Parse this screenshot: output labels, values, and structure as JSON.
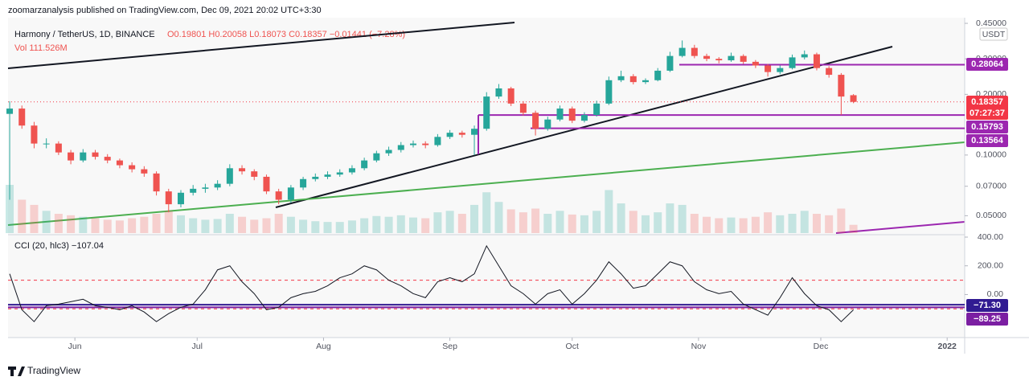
{
  "header": {
    "publisher": "zoomarzanalysis published on TradingView.com, Dec 09, 2021 20:02 UTC+3:30",
    "brand": "TradingView"
  },
  "chart_data": [
    {
      "type": "candlestick",
      "title": "Harmony / TetherUS, 1D, BINANCE",
      "subtitle": "O0.19801 H0.20058 L0.18073 C0.18357 −0.01441 (−7.28%)",
      "volume_label": "Vol 111.526M",
      "currency": "USDT",
      "countdown": "07:27:37",
      "log": true,
      "up_color": "#26a69a",
      "down_color": "#ef5350",
      "level_color": "#9c27b0",
      "x": [
        0,
        3,
        6,
        9,
        12,
        15,
        18,
        21,
        24,
        27,
        30,
        33,
        36,
        39,
        42,
        45,
        48,
        51,
        54,
        57,
        60,
        63,
        66,
        69,
        72,
        75,
        78,
        81,
        84,
        87,
        90,
        93,
        96,
        99,
        102,
        105,
        108,
        111,
        114,
        117,
        120,
        123,
        126,
        129,
        132,
        135,
        138,
        141,
        144,
        147,
        150,
        153,
        156,
        159,
        162,
        165,
        168,
        171,
        174,
        177,
        180,
        183,
        186,
        189,
        192,
        195,
        198,
        201,
        204,
        207
      ],
      "candles": [
        [
          0.16,
          0.185,
          0.06,
          0.17
        ],
        [
          0.17,
          0.176,
          0.135,
          0.14
        ],
        [
          0.14,
          0.146,
          0.108,
          0.114
        ],
        [
          0.114,
          0.121,
          0.108,
          0.114
        ],
        [
          0.114,
          0.117,
          0.1,
          0.103
        ],
        [
          0.103,
          0.106,
          0.09,
          0.094
        ],
        [
          0.094,
          0.107,
          0.092,
          0.103
        ],
        [
          0.103,
          0.106,
          0.095,
          0.098
        ],
        [
          0.098,
          0.101,
          0.091,
          0.094
        ],
        [
          0.094,
          0.096,
          0.086,
          0.089
        ],
        [
          0.089,
          0.092,
          0.082,
          0.085
        ],
        [
          0.085,
          0.088,
          0.078,
          0.081
        ],
        [
          0.081,
          0.083,
          0.063,
          0.066
        ],
        [
          0.066,
          0.068,
          0.052,
          0.057
        ],
        [
          0.057,
          0.067,
          0.055,
          0.065
        ],
        [
          0.065,
          0.071,
          0.063,
          0.068
        ],
        [
          0.068,
          0.072,
          0.065,
          0.069
        ],
        [
          0.069,
          0.075,
          0.067,
          0.072
        ],
        [
          0.072,
          0.09,
          0.07,
          0.086
        ],
        [
          0.086,
          0.089,
          0.08,
          0.083
        ],
        [
          0.083,
          0.085,
          0.075,
          0.078
        ],
        [
          0.078,
          0.08,
          0.064,
          0.066
        ],
        [
          0.066,
          0.068,
          0.057,
          0.06
        ],
        [
          0.06,
          0.071,
          0.058,
          0.069
        ],
        [
          0.069,
          0.078,
          0.067,
          0.076
        ],
        [
          0.076,
          0.081,
          0.074,
          0.078
        ],
        [
          0.078,
          0.083,
          0.076,
          0.08
        ],
        [
          0.08,
          0.085,
          0.078,
          0.082
        ],
        [
          0.082,
          0.089,
          0.08,
          0.086
        ],
        [
          0.086,
          0.097,
          0.084,
          0.094
        ],
        [
          0.094,
          0.105,
          0.092,
          0.102
        ],
        [
          0.102,
          0.11,
          0.099,
          0.106
        ],
        [
          0.106,
          0.116,
          0.103,
          0.112
        ],
        [
          0.112,
          0.118,
          0.109,
          0.114
        ],
        [
          0.114,
          0.117,
          0.108,
          0.112
        ],
        [
          0.112,
          0.127,
          0.11,
          0.123
        ],
        [
          0.123,
          0.133,
          0.12,
          0.129
        ],
        [
          0.129,
          0.132,
          0.122,
          0.126
        ],
        [
          0.126,
          0.14,
          0.1,
          0.135
        ],
        [
          0.135,
          0.205,
          0.132,
          0.195
        ],
        [
          0.195,
          0.225,
          0.19,
          0.214
        ],
        [
          0.214,
          0.218,
          0.175,
          0.18
        ],
        [
          0.18,
          0.185,
          0.157,
          0.162
        ],
        [
          0.162,
          0.166,
          0.125,
          0.135
        ],
        [
          0.135,
          0.155,
          0.132,
          0.15
        ],
        [
          0.15,
          0.176,
          0.147,
          0.17
        ],
        [
          0.17,
          0.174,
          0.144,
          0.148
        ],
        [
          0.148,
          0.163,
          0.145,
          0.158
        ],
        [
          0.158,
          0.186,
          0.155,
          0.18
        ],
        [
          0.18,
          0.245,
          0.177,
          0.235
        ],
        [
          0.235,
          0.262,
          0.23,
          0.246
        ],
        [
          0.246,
          0.252,
          0.224,
          0.23
        ],
        [
          0.23,
          0.24,
          0.225,
          0.235
        ],
        [
          0.235,
          0.27,
          0.232,
          0.262
        ],
        [
          0.262,
          0.325,
          0.258,
          0.31
        ],
        [
          0.31,
          0.37,
          0.305,
          0.34
        ],
        [
          0.34,
          0.352,
          0.302,
          0.31
        ],
        [
          0.31,
          0.318,
          0.292,
          0.3
        ],
        [
          0.3,
          0.306,
          0.285,
          0.295
        ],
        [
          0.295,
          0.322,
          0.29,
          0.31
        ],
        [
          0.31,
          0.316,
          0.283,
          0.29
        ],
        [
          0.29,
          0.296,
          0.27,
          0.278
        ],
        [
          0.278,
          0.283,
          0.245,
          0.258
        ],
        [
          0.258,
          0.278,
          0.252,
          0.27
        ],
        [
          0.27,
          0.315,
          0.266,
          0.305
        ],
        [
          0.305,
          0.33,
          0.298,
          0.316
        ],
        [
          0.316,
          0.322,
          0.263,
          0.27
        ],
        [
          0.27,
          0.276,
          0.242,
          0.25
        ],
        [
          0.25,
          0.255,
          0.158,
          0.195
        ],
        [
          0.19801,
          0.20058,
          0.18073,
          0.18357
        ]
      ],
      "volume": [
        650,
        450,
        380,
        300,
        260,
        240,
        220,
        200,
        180,
        170,
        200,
        220,
        260,
        300,
        240,
        200,
        180,
        190,
        260,
        220,
        180,
        200,
        260,
        220,
        180,
        160,
        150,
        150,
        170,
        200,
        230,
        220,
        240,
        210,
        200,
        280,
        300,
        260,
        380,
        550,
        420,
        320,
        280,
        330,
        260,
        300,
        250,
        240,
        300,
        580,
        400,
        300,
        240,
        280,
        400,
        380,
        260,
        220,
        200,
        210,
        200,
        220,
        280,
        240,
        260,
        300,
        260,
        240,
        330,
        111.526
      ],
      "levels": [
        0.28064,
        0.15793,
        0.13564
      ],
      "xlim": [
        -0.4,
        234.3
      ],
      "xticks": [
        {
          "value": 16,
          "label": "Jun"
        },
        {
          "value": 46,
          "label": "Jul"
        },
        {
          "value": 77,
          "label": "Aug"
        },
        {
          "value": 108,
          "label": "Sep"
        },
        {
          "value": 138,
          "label": "Oct"
        },
        {
          "value": 169,
          "label": "Nov"
        },
        {
          "value": 199,
          "label": "Dec"
        },
        {
          "value": 230,
          "label": "2022"
        }
      ],
      "ylim": [
        0.041,
        0.48
      ],
      "yticks": [
        {
          "value": 0.45,
          "label": "0.45000"
        },
        {
          "value": 0.3,
          "label": "0.30000"
        },
        {
          "value": 0.2,
          "label": "0.20000"
        },
        {
          "value": 0.1,
          "label": "0.10000"
        },
        {
          "value": 0.07,
          "label": "0.07000"
        },
        {
          "value": 0.05,
          "label": "0.05000"
        }
      ]
    },
    {
      "type": "line",
      "title": "CCI (20, hlc3) −107.04",
      "color": "#131722",
      "band_color": "#f23645",
      "values": [
        144,
        -106,
        -189,
        -78,
        -67,
        -50,
        -33,
        -78,
        -89,
        -106,
        -78,
        -122,
        -189,
        -133,
        -89,
        -67,
        33,
        172,
        200,
        89,
        6,
        -106,
        -89,
        -22,
        6,
        22,
        61,
        117,
        144,
        200,
        172,
        100,
        61,
        6,
        -22,
        89,
        117,
        89,
        144,
        339,
        200,
        61,
        6,
        -67,
        6,
        33,
        -67,
        6,
        100,
        228,
        144,
        44,
        61,
        144,
        228,
        200,
        89,
        33,
        6,
        22,
        -67,
        -106,
        -144,
        -22,
        117,
        6,
        -78,
        -106,
        -189,
        -107.04
      ],
      "bands": [
        100,
        -100
      ],
      "levels": [
        {
          "value": -71.3,
          "label": "−71.30",
          "color": "#311b92"
        },
        {
          "value": -89.25,
          "label": "−89.25",
          "color": "#7b1fa2"
        }
      ],
      "ylim": [
        -300,
        400
      ],
      "yticks": [
        {
          "value": 400,
          "label": "400.00"
        },
        {
          "value": 200,
          "label": "200.00"
        },
        {
          "value": 0,
          "label": "0.00"
        }
      ]
    }
  ]
}
